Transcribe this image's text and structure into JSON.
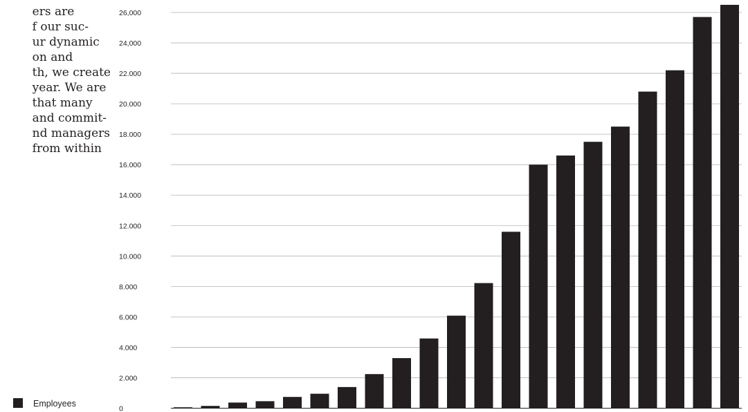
{
  "intro": {
    "lines": [
      "ers are",
      "f our suc-",
      "ur dynamic",
      "on and",
      "th, we create",
      " year. We are",
      " that many",
      "and commit-",
      "nd managers",
      "from within"
    ]
  },
  "legend": {
    "label": "Employees",
    "color": "#231f20"
  },
  "chart_data": {
    "type": "bar",
    "title": "",
    "xlabel": "",
    "ylabel": "",
    "ylim": [
      0,
      26000
    ],
    "yticks": [
      0,
      2000,
      4000,
      6000,
      8000,
      10000,
      12000,
      14000,
      16000,
      18000,
      20000,
      22000,
      24000,
      26000
    ],
    "ytick_labels": [
      "0",
      "2.000",
      "4.000",
      "6.000",
      "8.000",
      "10.000",
      "12.000",
      "14.000",
      "16.000",
      "18.000",
      "20.000",
      "22.000",
      "24,000",
      "26,000"
    ],
    "grid": true,
    "bar_color": "#231f20",
    "grid_color": "#b3b3b3",
    "series": [
      {
        "name": "Employees",
        "values": [
          60,
          150,
          370,
          460,
          740,
          950,
          1390,
          2240,
          3290,
          4580,
          6080,
          8220,
          11590,
          16000,
          16600,
          17500,
          18500,
          20800,
          22200,
          25700,
          26500
        ]
      }
    ]
  }
}
